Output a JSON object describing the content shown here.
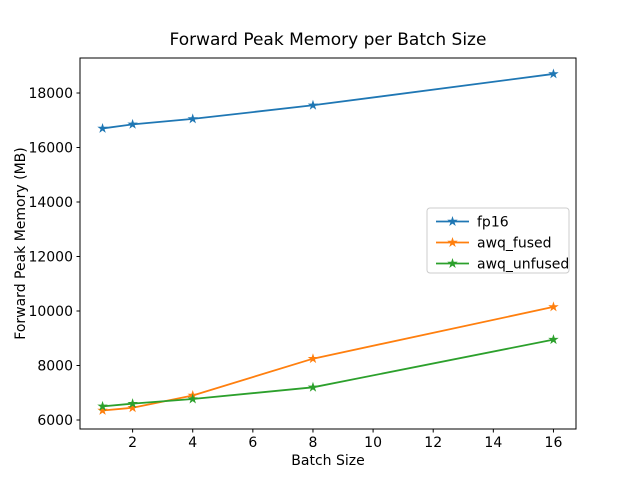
{
  "chart_data": {
    "type": "line",
    "title": "Forward Peak Memory per Batch Size",
    "xlabel": "Batch Size",
    "ylabel": "Forward Peak Memory (MB)",
    "x": [
      1,
      2,
      4,
      8,
      16
    ],
    "series": [
      {
        "name": "fp16",
        "color": "#1f77b4",
        "values": [
          16700,
          16850,
          17050,
          17550,
          18700
        ]
      },
      {
        "name": "awq_fused",
        "color": "#ff7f0e",
        "values": [
          6350,
          6450,
          6900,
          8250,
          10150
        ]
      },
      {
        "name": "awq_unfused",
        "color": "#2ca02c",
        "values": [
          6500,
          6600,
          6770,
          7200,
          8950
        ]
      }
    ],
    "marker": "star",
    "xticks": [
      2,
      4,
      6,
      8,
      10,
      12,
      14,
      16
    ],
    "yticks": [
      6000,
      8000,
      10000,
      12000,
      14000,
      16000,
      18000
    ],
    "xlim": [
      0.25,
      16.75
    ],
    "ylim": [
      5670,
      19285
    ],
    "grid": false,
    "legend_position": "center right",
    "background_color": "#ffffff",
    "spine_color": "#000000",
    "legend_border_color": "#cccccc"
  }
}
